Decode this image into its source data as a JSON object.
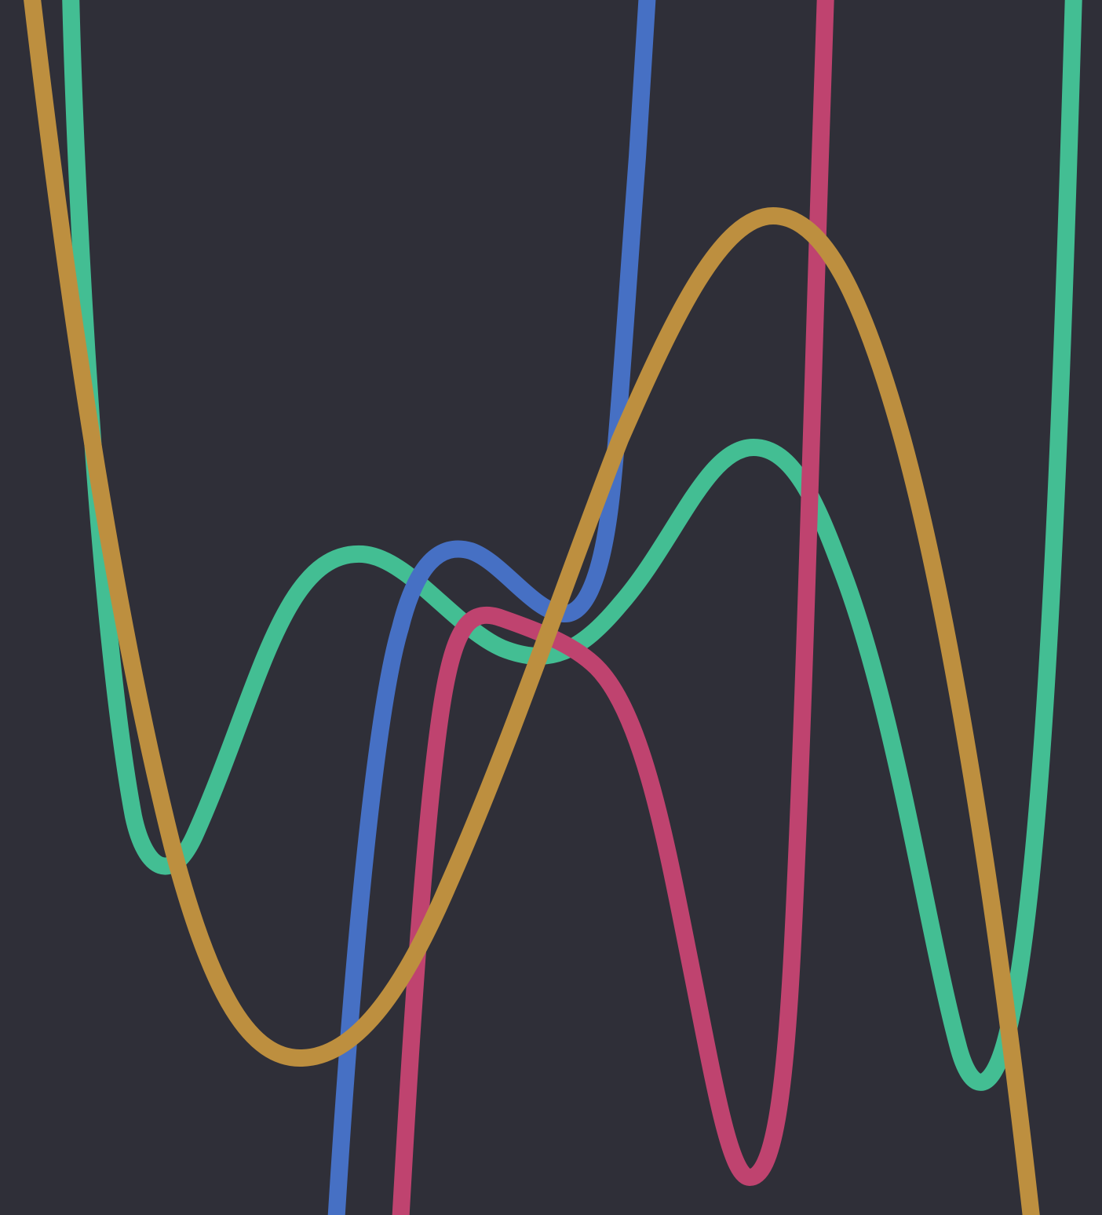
{
  "background": "#2f2f38",
  "curves": [
    {
      "name": "green-curve",
      "color": "#43be93"
    },
    {
      "name": "blue-curve",
      "color": "#4670c4"
    },
    {
      "name": "pink-curve",
      "color": "#bf436f"
    },
    {
      "name": "orange-curve",
      "color": "#bd8f3f"
    }
  ]
}
